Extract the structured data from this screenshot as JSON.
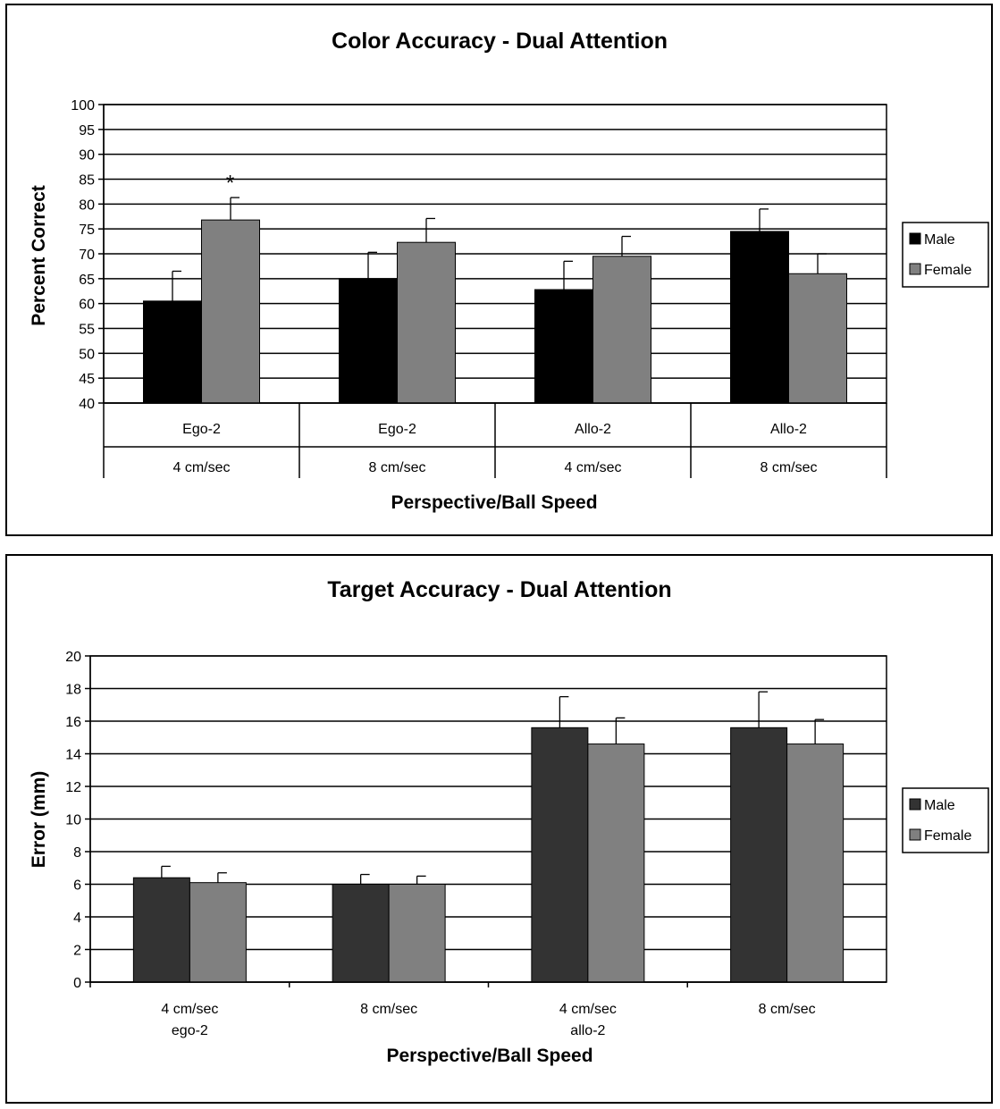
{
  "chart_data": [
    {
      "type": "bar",
      "title": "Color Accuracy - Dual Attention",
      "xlabel": "Perspective/Ball Speed",
      "ylabel": "Percent Correct",
      "ylim": [
        40,
        100
      ],
      "yticks": [
        40,
        45,
        50,
        55,
        60,
        65,
        70,
        75,
        80,
        85,
        90,
        95,
        100
      ],
      "categories": [
        {
          "perspective": "Ego-2",
          "speed": "4 cm/sec"
        },
        {
          "perspective": "Ego-2",
          "speed": "8 cm/sec"
        },
        {
          "perspective": "Allo-2",
          "speed": "4 cm/sec"
        },
        {
          "perspective": "Allo-2",
          "speed": "8 cm/sec"
        }
      ],
      "series": [
        {
          "name": "Male",
          "color": "#000000",
          "values": [
            60.5,
            65,
            62.8,
            74.5
          ],
          "errors": [
            6,
            5.3,
            5.7,
            4.5
          ]
        },
        {
          "name": "Female",
          "color": "#808080",
          "values": [
            76.8,
            72.3,
            69.5,
            66
          ],
          "errors": [
            4.5,
            4.8,
            4,
            4
          ]
        }
      ],
      "annotation": {
        "text": "*",
        "y": 85
      },
      "grid": true,
      "legend": "right"
    },
    {
      "type": "bar",
      "title": "Target Accuracy - Dual Attention",
      "xlabel": "Perspective/Ball Speed",
      "ylabel": "Error (mm)",
      "ylim": [
        0,
        20
      ],
      "yticks": [
        0,
        2,
        4,
        6,
        8,
        10,
        12,
        14,
        16,
        18,
        20
      ],
      "categories": [
        {
          "line1": "4 cm/sec",
          "line2": "ego-2"
        },
        {
          "line1": "8 cm/sec",
          "line2": ""
        },
        {
          "line1": "4 cm/sec",
          "line2": "allo-2"
        },
        {
          "line1": "8 cm/sec",
          "line2": ""
        }
      ],
      "series": [
        {
          "name": "Male",
          "color": "#333333",
          "values": [
            6.4,
            6.0,
            15.6,
            15.6
          ],
          "errors": [
            0.7,
            0.6,
            1.9,
            2.2
          ]
        },
        {
          "name": "Female",
          "color": "#808080",
          "values": [
            6.1,
            6.0,
            14.6,
            14.6
          ],
          "errors": [
            0.6,
            0.5,
            1.6,
            1.5
          ]
        }
      ],
      "grid": true,
      "legend": "right"
    }
  ]
}
